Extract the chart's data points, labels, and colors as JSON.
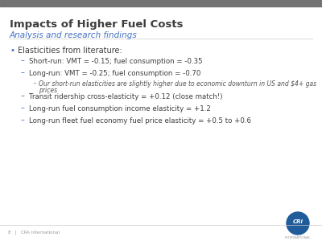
{
  "title": "Impacts of Higher Fuel Costs",
  "subtitle": "Analysis and research findings",
  "title_color": "#3D3D3D",
  "subtitle_color": "#4472C4",
  "slide_bg": "#FFFFFF",
  "top_bar_color": "#737373",
  "footer_text": "8   |   CRA International",
  "footer_color": "#999999",
  "bullet_color": "#4472C4",
  "dash_color": "#4472C4",
  "text_color": "#3D3D3D",
  "small_text_color": "#555555",
  "logo_color": "#1F5C99",
  "lines": [
    {
      "level": 1,
      "text": "Elasticities from literature:"
    },
    {
      "level": 2,
      "text": "Short-run: VMT = -0.15; fuel consumption = -0.35"
    },
    {
      "level": 2,
      "text": "Long-run: VMT = -0.25; fuel consumption = -0.70"
    },
    {
      "level": 3,
      "text": "Our short-run elasticities are slightly higher due to economic downturn in US and $4+ gas prices"
    },
    {
      "level": 2,
      "text": "Transit ridership cross-elasticity = +0.12 (close match!)"
    },
    {
      "level": 2,
      "text": "Long-run fuel consumption income elasticity = +1.2"
    },
    {
      "level": 2,
      "text": "Long-run fleet fuel economy fuel price elasticity = +0.5 to +0.6"
    }
  ]
}
